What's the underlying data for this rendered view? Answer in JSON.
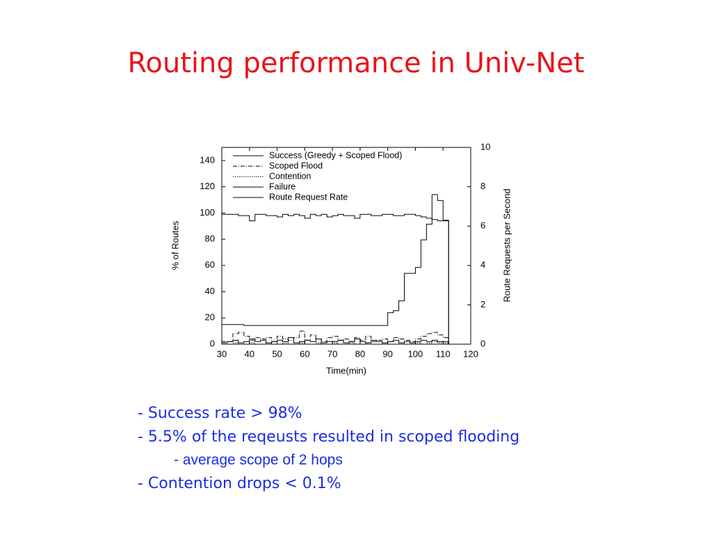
{
  "title": "Routing performance in Univ-Net",
  "bullets": [
    "- Success rate > 98%",
    "- 5.5% of the reqeusts resulted in scoped flooding",
    "- average scope of 2 hops",
    "- Contention drops < 0.1%"
  ],
  "chart_data": {
    "type": "line",
    "step": true,
    "xlabel": "Time(min)",
    "ylabel": "% of Routes",
    "y2label": "Route Requests per Second",
    "x": [
      30,
      32,
      34,
      36,
      38,
      40,
      42,
      44,
      46,
      48,
      50,
      52,
      54,
      56,
      58,
      60,
      62,
      64,
      66,
      68,
      70,
      72,
      74,
      76,
      78,
      80,
      82,
      84,
      86,
      88,
      90,
      92,
      94,
      96,
      98,
      100,
      102,
      104,
      106,
      108,
      110,
      112
    ],
    "xlim": [
      30,
      120
    ],
    "xticks": [
      30,
      40,
      50,
      60,
      70,
      80,
      90,
      100,
      110,
      120
    ],
    "ylim": [
      0,
      150
    ],
    "yticks": [
      0,
      20,
      40,
      60,
      80,
      100,
      120,
      140
    ],
    "y2lim": [
      0,
      10
    ],
    "y2ticks": [
      0,
      2,
      4,
      6,
      8,
      10
    ],
    "legend": "upper left",
    "series": [
      {
        "name": "Success (Greedy + Scoped Flood)",
        "color": "#000000",
        "linestyle": "solid",
        "values": [
          99,
          99,
          99,
          98,
          98,
          94,
          99,
          99,
          98,
          98,
          97,
          99,
          98,
          99,
          98,
          96,
          99,
          98,
          99,
          97,
          98,
          99,
          98,
          98,
          96,
          99,
          99,
          98,
          98,
          99,
          99,
          98,
          98,
          99,
          99,
          98,
          97,
          96,
          95,
          94,
          94,
          0
        ]
      },
      {
        "name": "Scoped Flood",
        "color": "#000000",
        "linestyle": "dashdot",
        "values": [
          2,
          2,
          8,
          9,
          6,
          3,
          5,
          4,
          5,
          2,
          6,
          4,
          3,
          5,
          10,
          3,
          7,
          4,
          2,
          5,
          6,
          3,
          4,
          2,
          5,
          3,
          6,
          2,
          3,
          4,
          2,
          5,
          4,
          3,
          2,
          4,
          6,
          8,
          9,
          7,
          5,
          0
        ]
      },
      {
        "name": "Contention",
        "color": "#000000",
        "linestyle": "dotted",
        "values": [
          0,
          0,
          1,
          0,
          0,
          1,
          0,
          0,
          1,
          0,
          0,
          1,
          0,
          0,
          1,
          0,
          0,
          1,
          0,
          0,
          1,
          0,
          0,
          1,
          0,
          0,
          1,
          0,
          0,
          1,
          0,
          0,
          1,
          0,
          0,
          1,
          0,
          1,
          2,
          1,
          1,
          0
        ]
      },
      {
        "name": "Failure",
        "color": "#000000",
        "linestyle": "solid",
        "values": [
          1,
          2,
          3,
          1,
          2,
          4,
          2,
          3,
          1,
          2,
          3,
          2,
          5,
          1,
          2,
          3,
          2,
          4,
          1,
          2,
          2,
          3,
          1,
          2,
          4,
          2,
          1,
          3,
          2,
          1,
          2,
          3,
          1,
          2,
          1,
          2,
          3,
          2,
          3,
          2,
          2,
          0
        ]
      },
      {
        "name": "Route Request Rate",
        "color": "#000000",
        "linestyle": "solid",
        "axis": "y2",
        "values": [
          1.0,
          1.0,
          1.0,
          1.0,
          0.95,
          0.95,
          0.95,
          0.95,
          0.95,
          0.95,
          0.95,
          0.95,
          0.95,
          0.95,
          0.95,
          0.95,
          0.95,
          0.95,
          0.95,
          0.95,
          0.95,
          0.95,
          0.95,
          0.95,
          0.95,
          0.95,
          0.95,
          0.95,
          0.95,
          0.95,
          1.6,
          1.7,
          2.2,
          3.6,
          3.6,
          3.9,
          5.3,
          6.1,
          7.6,
          7.3,
          6.3,
          0
        ]
      }
    ]
  }
}
